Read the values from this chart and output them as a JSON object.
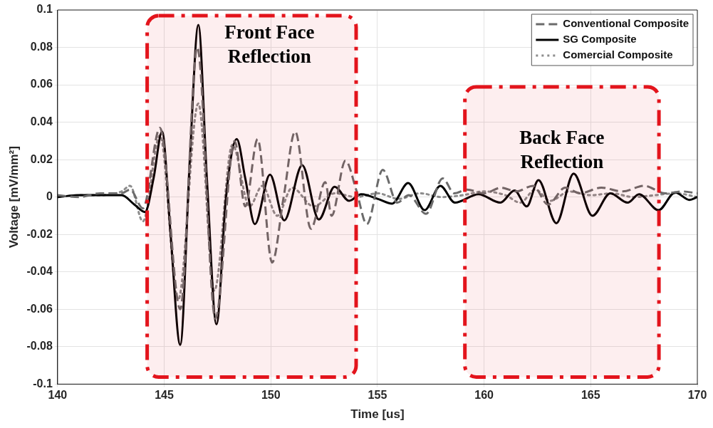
{
  "chart_data": {
    "type": "line",
    "xlabel": "Time [us]",
    "ylabel": "Voltage [mV/mm²]",
    "xlim": [
      140,
      170
    ],
    "xticks": [
      140,
      145,
      150,
      155,
      160,
      165,
      170
    ],
    "ylim": [
      -0.1,
      0.1
    ],
    "yticks": [
      -0.1,
      -0.08,
      -0.06,
      -0.04,
      -0.02,
      0,
      0.02,
      0.04,
      0.06,
      0.08,
      0.1
    ],
    "grid": true,
    "legend": "top right",
    "marker": "none",
    "bands": [
      {
        "axis": "x",
        "from": 144.2,
        "to": 154,
        "label": "Front Face Reflection",
        "color": "#e3141c"
      },
      {
        "axis": "x",
        "from": 159.1,
        "to": 168.2,
        "label": "Back Face Reflection",
        "color": "#e3141c"
      }
    ],
    "series": [
      {
        "name": "Conventional Composite",
        "color": "#6b6b6b",
        "line_style": "dashed",
        "x": [
          140,
          141,
          142,
          143,
          143.4,
          144.0,
          144.8,
          145.75,
          146.55,
          147.4,
          148.3,
          148.8,
          149.38,
          150.06,
          150.6,
          151.14,
          151.88,
          152.55,
          152.85,
          153.5,
          154.0,
          154.5,
          155.25,
          155.93,
          156.47,
          157.28,
          158.06,
          158.6,
          159.2,
          160,
          160.8,
          161.5,
          162.3,
          163,
          163.8,
          164.5,
          165.5,
          166.5,
          167.5,
          168.5,
          169.3,
          170
        ],
        "values": [
          0.001,
          0,
          0.002,
          0.002,
          0.004,
          -0.006,
          0.037,
          -0.06,
          0.08,
          -0.065,
          0.03,
          -0.005,
          0.031,
          -0.035,
          0.0,
          0.035,
          -0.017,
          0.008,
          -0.01,
          0.0195,
          0.004,
          -0.0145,
          0.0145,
          -0.003,
          0.001,
          -0.009,
          0.01,
          0.002,
          0.004,
          0.002,
          0.005,
          0.003,
          0.006,
          -0.004,
          0.005,
          0.002,
          0.005,
          0.003,
          0.006,
          0.002,
          0.003,
          0.002
        ]
      },
      {
        "name": "SG Composite",
        "color": "#000000",
        "line_style": "solid",
        "x": [
          140,
          141,
          142,
          143,
          143.6,
          144.1,
          144.5,
          144.9,
          145.3,
          145.75,
          146.2,
          146.6,
          147.0,
          147.45,
          147.9,
          148.4,
          148.8,
          149.25,
          149.96,
          150.63,
          151.47,
          152.25,
          152.99,
          153.67,
          154.24,
          155.02,
          155.69,
          156.44,
          157.21,
          157.95,
          158.63,
          159.74,
          160.76,
          161.43,
          162.0,
          162.55,
          163.39,
          164.2,
          165.08,
          165.92,
          166.73,
          167.27,
          168.18,
          168.96,
          169.63,
          170
        ],
        "values": [
          0,
          0.001,
          0.001,
          0.001,
          -0.004,
          -0.008,
          0.01,
          0.035,
          -0.02,
          -0.079,
          0.02,
          0.092,
          0.01,
          -0.068,
          0.0,
          0.031,
          0.01,
          -0.0145,
          0.012,
          -0.0125,
          0.017,
          -0.012,
          0.0055,
          -0.002,
          0.0015,
          -0.001,
          -0.0035,
          0.0075,
          -0.007,
          0.006,
          -0.003,
          0.0015,
          -0.003,
          0.0035,
          -0.005,
          0.009,
          -0.014,
          0.0125,
          -0.01,
          0.002,
          -0.003,
          0.0015,
          -0.007,
          0.0025,
          -0.0015,
          0
        ]
      },
      {
        "name": "Comercial Composite",
        "color": "#8c8c8c",
        "line_style": "dotted",
        "x": [
          140,
          141,
          142,
          143,
          143.4,
          144.0,
          144.8,
          145.65,
          146.6,
          147.35,
          148.2,
          149.0,
          149.6,
          150.3,
          151.0,
          152,
          153,
          154,
          155,
          156,
          157,
          158,
          159,
          160,
          161,
          161.7,
          162.4,
          163.1,
          164,
          165,
          166,
          167,
          168,
          169,
          170
        ],
        "values": [
          0,
          0.001,
          0.001,
          0.003,
          0.006,
          -0.013,
          0.033,
          -0.055,
          0.05,
          -0.05,
          0.028,
          -0.005,
          0.006,
          -0.01,
          0.005,
          -0.005,
          0.002,
          0,
          0.002,
          -0.001,
          0.002,
          0,
          0.001,
          0.003,
          0.001,
          -0.003,
          0.004,
          -0.002,
          0.003,
          0.001,
          0.002,
          0,
          0.001,
          0.002,
          0
        ]
      }
    ]
  }
}
